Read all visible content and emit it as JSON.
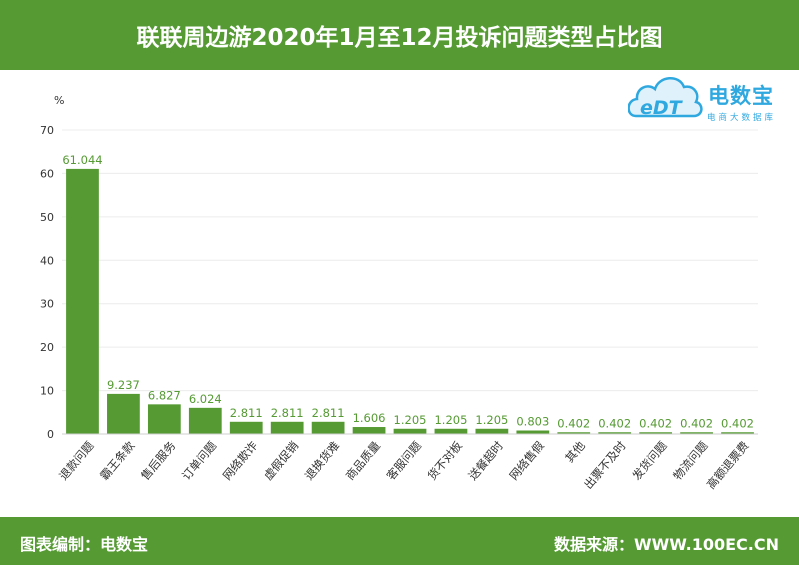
{
  "header": {
    "title": "联联周边游2020年1月至12月投诉问题类型占比图"
  },
  "footer": {
    "left": "图表编制：电数宝",
    "right": "数据来源：WWW.100EC.CN"
  },
  "logo": {
    "name": "电数宝",
    "subtitle": "电商大数据库",
    "mark": "eDT"
  },
  "colors": {
    "brand": "#559a33",
    "bar": "#559a33",
    "label": "#559a33",
    "logo": "#2fa8e0"
  },
  "chart_data": {
    "type": "bar",
    "ylabel": "%",
    "ylim": [
      0,
      70
    ],
    "yticks": [
      0,
      10,
      20,
      30,
      40,
      50,
      60,
      70
    ],
    "grid": true,
    "categories": [
      "退款问题",
      "霸王条款",
      "售后服务",
      "订单问题",
      "网络欺诈",
      "虚假促销",
      "退换货难",
      "商品质量",
      "客服问题",
      "货不对板",
      "送餐超时",
      "网络售假",
      "其他",
      "出票不及时",
      "发货问题",
      "物流问题",
      "高额退票费"
    ],
    "values": [
      61.044,
      9.237,
      6.827,
      6.024,
      2.811,
      2.811,
      2.811,
      1.606,
      1.205,
      1.205,
      1.205,
      0.803,
      0.402,
      0.402,
      0.402,
      0.402,
      0.402
    ],
    "value_labels": [
      "61.044",
      "9.237",
      "6.827",
      "6.024",
      "2.811",
      "2.811",
      "2.811",
      "1.606",
      "1.205",
      "1.205",
      "1.205",
      "0.803",
      "0.402",
      "0.402",
      "0.402",
      "0.402",
      "0.402"
    ]
  }
}
